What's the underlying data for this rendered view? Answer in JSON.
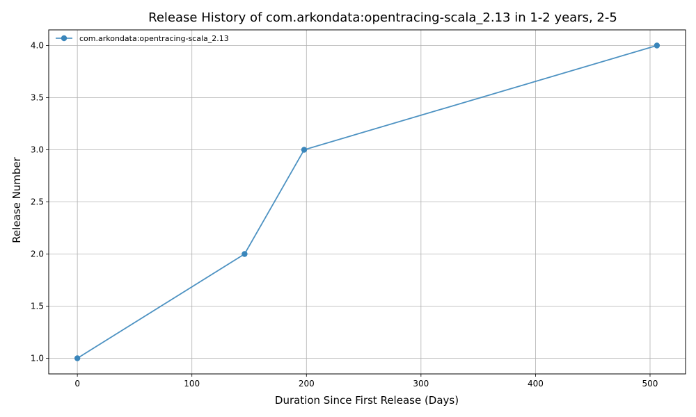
{
  "chart_data": {
    "type": "line",
    "title": "Release History of com.arkondata:opentracing-scala_2.13 in 1-2 years, 2-5",
    "xlabel": "Duration Since First Release (Days)",
    "ylabel": "Release Number",
    "xlim": [
      -25,
      531
    ],
    "ylim": [
      0.85,
      4.15
    ],
    "x_ticks": [
      0,
      100,
      200,
      300,
      400,
      500
    ],
    "y_ticks": [
      1.0,
      1.5,
      2.0,
      2.5,
      3.0,
      3.5,
      4.0
    ],
    "x_tick_labels": [
      "0",
      "100",
      "200",
      "300",
      "400",
      "500"
    ],
    "y_tick_labels": [
      "1.0",
      "1.5",
      "2.0",
      "2.5",
      "3.0",
      "3.5",
      "4.0"
    ],
    "grid": true,
    "legend_position": "top-left",
    "series": [
      {
        "name": "com.arkondata:opentracing-scala_2.13",
        "color": "#3a86bb",
        "marker": "circle",
        "x": [
          0,
          146,
          198,
          506
        ],
        "y": [
          1,
          2,
          3,
          4
        ]
      }
    ]
  }
}
